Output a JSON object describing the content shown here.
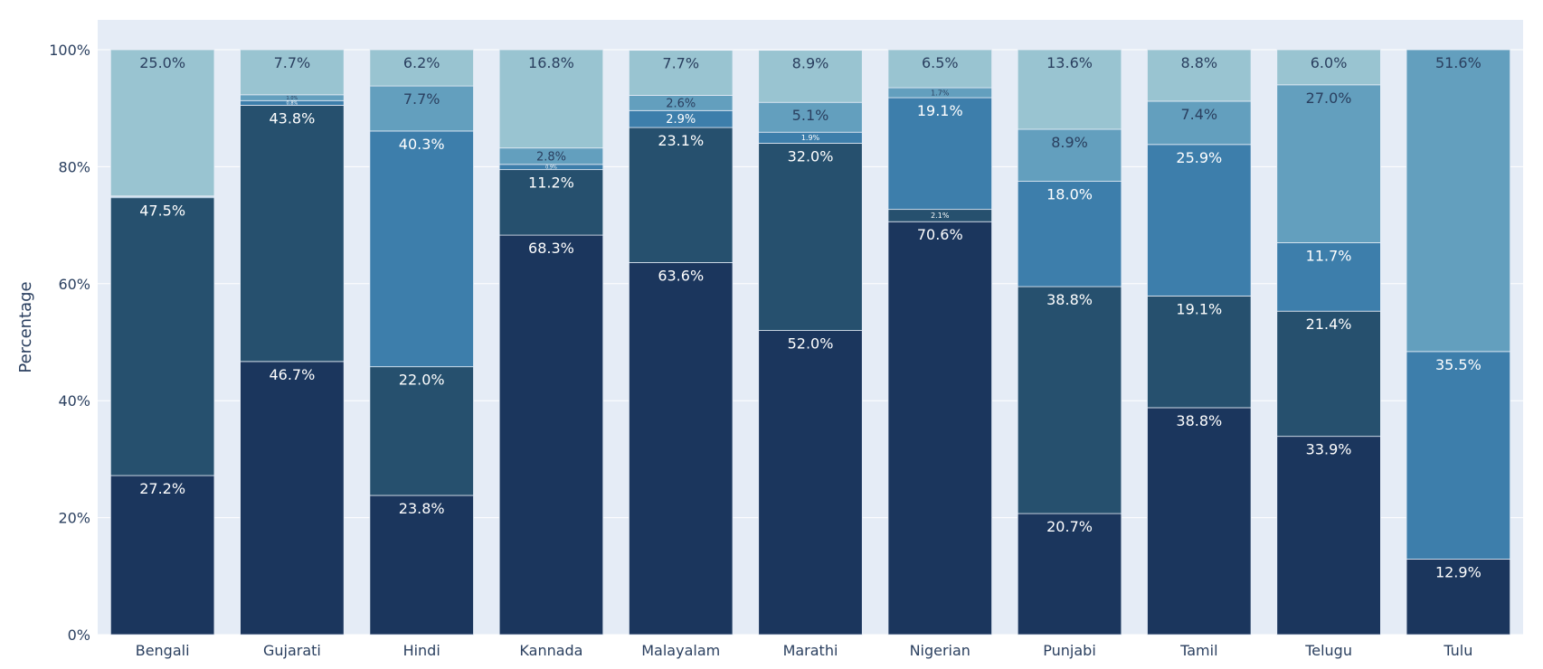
{
  "chart_data": {
    "type": "bar",
    "stacked": true,
    "normalized": true,
    "title": "",
    "xlabel": "",
    "ylabel": "Percentage",
    "ylim": [
      0,
      100
    ],
    "y_ticks": [
      0,
      20,
      40,
      60,
      80,
      100
    ],
    "y_tick_labels": [
      "0%",
      "20%",
      "40%",
      "60%",
      "80%",
      "100%"
    ],
    "grid": true,
    "legend": "none",
    "categories": [
      "Bengali",
      "Gujarati",
      "Hindi",
      "Kannada",
      "Malayalam",
      "Marathi",
      "Nigerian",
      "Punjabi",
      "Tamil",
      "Telugu",
      "Tulu"
    ],
    "colors": [
      "#1b365d",
      "#26506e",
      "#3d7eab",
      "#639fbe",
      "#99c4d1"
    ],
    "series": [
      {
        "values": [
          27.2,
          46.7,
          23.8,
          68.3,
          63.6,
          52.0,
          70.6,
          20.7,
          38.8,
          33.9,
          12.9
        ],
        "labels": [
          "27.2%",
          "46.7%",
          "23.8%",
          "68.3%",
          "63.6%",
          "52.0%",
          "70.6%",
          "20.7%",
          "38.8%",
          "33.9%",
          "12.9%"
        ]
      },
      {
        "values": [
          47.5,
          43.8,
          22.0,
          11.2,
          23.1,
          32.0,
          2.1,
          38.8,
          19.1,
          21.4,
          0
        ],
        "labels": [
          "47.5%",
          "43.8%",
          "22.0%",
          "11.2%",
          "23.1%",
          "32.0%",
          "2.1%",
          "38.8%",
          "19.1%",
          "21.4%",
          ""
        ]
      },
      {
        "values": [
          0.2,
          0.8,
          40.3,
          0.9,
          2.9,
          1.9,
          19.1,
          18.0,
          25.9,
          11.7,
          35.5
        ],
        "labels": [
          "",
          "0.8%",
          "40.3%",
          "0.9%",
          "2.9%",
          "1.9%",
          "19.1%",
          "18.0%",
          "25.9%",
          "11.7%",
          "35.5%"
        ]
      },
      {
        "values": [
          0.1,
          1.0,
          7.7,
          2.8,
          2.6,
          5.1,
          1.7,
          8.9,
          7.4,
          27.0,
          51.6
        ],
        "labels": [
          "",
          "1.0%",
          "7.7%",
          "2.8%",
          "2.6%",
          "5.1%",
          "1.7%",
          "8.9%",
          "7.4%",
          "27.0%",
          "51.6%"
        ]
      },
      {
        "values": [
          25.0,
          7.7,
          6.2,
          16.8,
          7.7,
          8.9,
          6.5,
          13.6,
          8.8,
          6.0,
          0
        ],
        "labels": [
          "25.0%",
          "7.7%",
          "6.2%",
          "16.8%",
          "7.7%",
          "8.9%",
          "6.5%",
          "13.6%",
          "8.8%",
          "6.0%",
          ""
        ]
      }
    ]
  }
}
